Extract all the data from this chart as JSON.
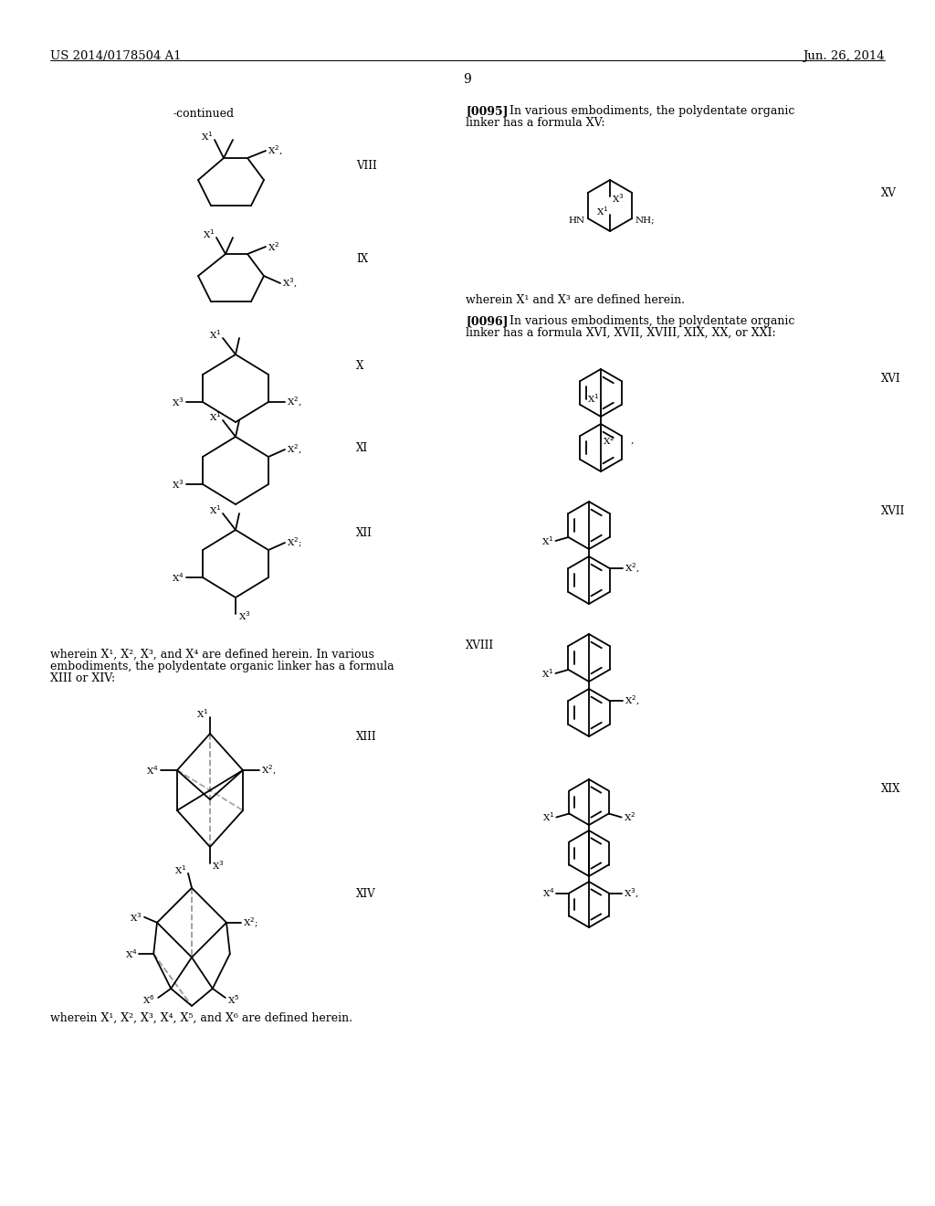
{
  "bg_color": "#ffffff",
  "header_left": "US 2014/0178504 A1",
  "header_right": "Jun. 26, 2014",
  "page_number": "9"
}
